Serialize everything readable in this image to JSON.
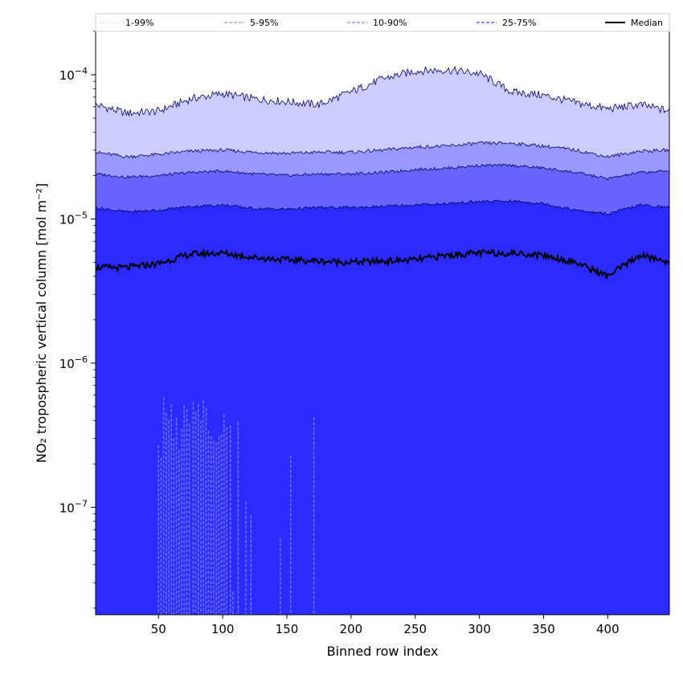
{
  "chart_data": {
    "type": "area",
    "x_range": [
      1,
      448
    ],
    "xlabel": "Binned row index",
    "ylabel": "NO₂ tropospheric vertical column [mol m⁻²]",
    "yscale": "log",
    "ylim": [
      1.8e-08,
      0.0002
    ],
    "x_ticks": [
      50,
      100,
      150,
      200,
      250,
      300,
      350,
      400
    ],
    "y_ticks": [
      {
        "value": 1e-07,
        "base": "10",
        "exp": "−7"
      },
      {
        "value": 1e-06,
        "base": "10",
        "exp": "−6"
      },
      {
        "value": 1e-05,
        "base": "10",
        "exp": "−5"
      },
      {
        "value": 0.0001,
        "base": "10",
        "exp": "−4"
      }
    ],
    "legend_position": "top, horizontal",
    "x": [
      1,
      25,
      50,
      75,
      100,
      125,
      150,
      175,
      200,
      225,
      250,
      275,
      300,
      325,
      350,
      375,
      400,
      425,
      448
    ],
    "series": [
      {
        "name": "1-99%",
        "legend_color": "#d8d8ee",
        "fill": "#ccccff",
        "role": "upper",
        "values": [
          6.2e-05,
          5.4e-05,
          5.6e-05,
          6.8e-05,
          7.4e-05,
          6.8e-05,
          6.5e-05,
          6.2e-05,
          7.6e-05,
          9.4e-05,
          0.000106,
          0.000108,
          0.000102,
          7.6e-05,
          7.2e-05,
          6.4e-05,
          5.8e-05,
          6.2e-05,
          5.6e-05
        ]
      },
      {
        "name": "5-95%",
        "legend_color": "#9a9acc",
        "fill": "#9999ff",
        "role": "upper",
        "values": [
          2.9e-05,
          2.7e-05,
          2.8e-05,
          2.95e-05,
          3e-05,
          2.9e-05,
          2.85e-05,
          2.9e-05,
          2.9e-05,
          3e-05,
          3.15e-05,
          3.2e-05,
          3.35e-05,
          3.35e-05,
          3.2e-05,
          3e-05,
          2.7e-05,
          2.95e-05,
          3e-05
        ]
      },
      {
        "name": "10-90%",
        "legend_color": "#8080ff",
        "fill": "#6666ff",
        "role": "upper",
        "values": [
          2.05e-05,
          1.95e-05,
          2e-05,
          2.1e-05,
          2.15e-05,
          2.05e-05,
          2e-05,
          2.05e-05,
          2.05e-05,
          2.1e-05,
          2.2e-05,
          2.25e-05,
          2.35e-05,
          2.35e-05,
          2.25e-05,
          2.1e-05,
          1.9e-05,
          2.1e-05,
          2.15e-05
        ]
      },
      {
        "name": "25-75%",
        "legend_color": "#4444ff",
        "fill": "#2b2bff",
        "role": "upper",
        "values": [
          1.2e-05,
          1.12e-05,
          1.15e-05,
          1.22e-05,
          1.25e-05,
          1.18e-05,
          1.17e-05,
          1.2e-05,
          1.2e-05,
          1.22e-05,
          1.25e-05,
          1.28e-05,
          1.32e-05,
          1.33e-05,
          1.28e-05,
          1.15e-05,
          1.08e-05,
          1.25e-05,
          1.2e-05
        ]
      },
      {
        "name": "Median",
        "legend_color": "#000000",
        "role": "line",
        "values": [
          4.6e-06,
          4.6e-06,
          4.9e-06,
          5.7e-06,
          5.8e-06,
          5.4e-06,
          5.2e-06,
          5.1e-06,
          5e-06,
          5.1e-06,
          5.2e-06,
          5.6e-06,
          5.8e-06,
          5.8e-06,
          5.6e-06,
          5e-06,
          4e-06,
          5.6e-06,
          5e-06
        ]
      }
    ],
    "lower_spikes": [
      {
        "x": 50,
        "y": 2.7e-07
      },
      {
        "x": 52,
        "y": 2.2e-07
      },
      {
        "x": 54,
        "y": 5.8e-07
      },
      {
        "x": 56,
        "y": 4.5e-07
      },
      {
        "x": 58,
        "y": 4e-07
      },
      {
        "x": 60,
        "y": 5.2e-07
      },
      {
        "x": 62,
        "y": 3e-07
      },
      {
        "x": 64,
        "y": 4.2e-07
      },
      {
        "x": 66,
        "y": 2.5e-07
      },
      {
        "x": 68,
        "y": 3.5e-07
      },
      {
        "x": 70,
        "y": 5.1e-07
      },
      {
        "x": 72,
        "y": 4.8e-07
      },
      {
        "x": 74,
        "y": 3.8e-07
      },
      {
        "x": 77,
        "y": 5.4e-07
      },
      {
        "x": 79,
        "y": 4.6e-07
      },
      {
        "x": 81,
        "y": 5.2e-07
      },
      {
        "x": 83,
        "y": 4e-07
      },
      {
        "x": 85,
        "y": 5.5e-07
      },
      {
        "x": 87,
        "y": 4.9e-07
      },
      {
        "x": 89,
        "y": 3.4e-07
      },
      {
        "x": 91,
        "y": 3.1e-07
      },
      {
        "x": 93,
        "y": 2.9e-07
      },
      {
        "x": 95,
        "y": 2.8e-07
      },
      {
        "x": 97,
        "y": 3.1e-07
      },
      {
        "x": 99,
        "y": 3.2e-07
      },
      {
        "x": 101,
        "y": 4.4e-07
      },
      {
        "x": 103,
        "y": 3.6e-07
      },
      {
        "x": 106,
        "y": 3.7e-07
      },
      {
        "x": 108,
        "y": 2.6e-08
      },
      {
        "x": 112,
        "y": 3.9e-07
      },
      {
        "x": 118,
        "y": 1.1e-07
      },
      {
        "x": 122,
        "y": 8.8e-08
      },
      {
        "x": 145,
        "y": 6.1e-08
      },
      {
        "x": 153,
        "y": 2.3e-07
      },
      {
        "x": 171,
        "y": 4.2e-07
      }
    ]
  }
}
